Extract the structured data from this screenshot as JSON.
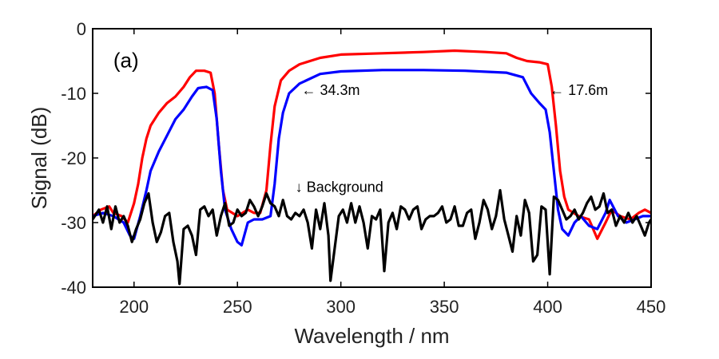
{
  "chart_data": {
    "type": "line",
    "title": "",
    "xlabel": "Wavelength / nm",
    "ylabel": "Signal (dB)",
    "xlim": [
      180,
      450
    ],
    "ylim": [
      -40,
      0
    ],
    "xticks": [
      200,
      250,
      300,
      350,
      400,
      450
    ],
    "yticks": [
      0,
      -10,
      -20,
      -30,
      -40
    ],
    "grid": false,
    "panel_label": "(a)",
    "series": [
      {
        "color": "#ff0000",
        "points": [
          [
            180,
            -29
          ],
          [
            184,
            -28
          ],
          [
            188,
            -27.5
          ],
          [
            190,
            -28.5
          ],
          [
            194,
            -29
          ],
          [
            197,
            -30
          ],
          [
            200,
            -27
          ],
          [
            202,
            -24
          ],
          [
            204,
            -20
          ],
          [
            206,
            -17
          ],
          [
            208,
            -15
          ],
          [
            212,
            -13
          ],
          [
            216,
            -11.5
          ],
          [
            220,
            -10.5
          ],
          [
            224,
            -9
          ],
          [
            227,
            -7.5
          ],
          [
            230,
            -6.5
          ],
          [
            234,
            -6.5
          ],
          [
            237,
            -6.8
          ],
          [
            239,
            -10
          ],
          [
            241,
            -18
          ],
          [
            243,
            -25
          ],
          [
            245,
            -28
          ],
          [
            250,
            -29
          ],
          [
            255,
            -28
          ],
          [
            258,
            -28.5
          ],
          [
            261,
            -28.5
          ],
          [
            264,
            -25
          ],
          [
            266,
            -18
          ],
          [
            268,
            -12
          ],
          [
            271,
            -8
          ],
          [
            275,
            -6.5
          ],
          [
            280,
            -5.5
          ],
          [
            290,
            -4.5
          ],
          [
            300,
            -4
          ],
          [
            320,
            -3.8
          ],
          [
            340,
            -3.6
          ],
          [
            355,
            -3.4
          ],
          [
            370,
            -3.6
          ],
          [
            380,
            -3.8
          ],
          [
            385,
            -4.5
          ],
          [
            390,
            -5
          ],
          [
            396,
            -5.2
          ],
          [
            400,
            -5.5
          ],
          [
            402,
            -9
          ],
          [
            404,
            -15
          ],
          [
            406,
            -22
          ],
          [
            408,
            -26
          ],
          [
            410,
            -28
          ],
          [
            415,
            -29
          ],
          [
            420,
            -29.5
          ],
          [
            424,
            -32.5
          ],
          [
            428,
            -30
          ],
          [
            431,
            -28
          ],
          [
            435,
            -29
          ],
          [
            440,
            -29.5
          ],
          [
            444,
            -28.5
          ],
          [
            447,
            -28
          ],
          [
            450,
            -28.5
          ]
        ]
      },
      {
        "color": "#0000ff",
        "points": [
          [
            180,
            -29
          ],
          [
            185,
            -28.5
          ],
          [
            190,
            -29
          ],
          [
            195,
            -30
          ],
          [
            198,
            -32
          ],
          [
            200,
            -32.5
          ],
          [
            203,
            -29
          ],
          [
            206,
            -25
          ],
          [
            208,
            -22
          ],
          [
            212,
            -19
          ],
          [
            216,
            -16.5
          ],
          [
            220,
            -14
          ],
          [
            224,
            -12.5
          ],
          [
            228,
            -10.5
          ],
          [
            231,
            -9.2
          ],
          [
            235,
            -9
          ],
          [
            238,
            -9.5
          ],
          [
            240,
            -14
          ],
          [
            242,
            -22
          ],
          [
            244,
            -28
          ],
          [
            247,
            -31
          ],
          [
            250,
            -33
          ],
          [
            252,
            -33.5
          ],
          [
            255,
            -30
          ],
          [
            258,
            -29.5
          ],
          [
            262,
            -29.5
          ],
          [
            266,
            -29
          ],
          [
            268,
            -24
          ],
          [
            270,
            -17
          ],
          [
            272,
            -13
          ],
          [
            275,
            -10
          ],
          [
            280,
            -8.5
          ],
          [
            290,
            -7
          ],
          [
            300,
            -6.6
          ],
          [
            320,
            -6.4
          ],
          [
            340,
            -6.4
          ],
          [
            360,
            -6.5
          ],
          [
            380,
            -6.8
          ],
          [
            388,
            -7.5
          ],
          [
            392,
            -10
          ],
          [
            396,
            -11.5
          ],
          [
            399,
            -12.5
          ],
          [
            401,
            -16
          ],
          [
            403,
            -22
          ],
          [
            405,
            -28
          ],
          [
            407,
            -31
          ],
          [
            410,
            -32
          ],
          [
            413,
            -30
          ],
          [
            416,
            -29
          ],
          [
            420,
            -30.5
          ],
          [
            424,
            -31
          ],
          [
            428,
            -28.5
          ],
          [
            430,
            -26.5
          ],
          [
            434,
            -29
          ],
          [
            438,
            -30
          ],
          [
            442,
            -29.5
          ],
          [
            446,
            -29
          ],
          [
            450,
            -29
          ]
        ]
      },
      {
        "name": "Background",
        "color": "#000000",
        "points": [
          [
            180,
            -29.5
          ],
          [
            183,
            -28
          ],
          [
            185,
            -30
          ],
          [
            187,
            -27.5
          ],
          [
            189,
            -31
          ],
          [
            191,
            -27.5
          ],
          [
            193,
            -30
          ],
          [
            195,
            -29
          ],
          [
            197,
            -30.5
          ],
          [
            199,
            -33
          ],
          [
            201,
            -31
          ],
          [
            203,
            -29.5
          ],
          [
            205,
            -27
          ],
          [
            207,
            -25.5
          ],
          [
            209,
            -30
          ],
          [
            211,
            -33
          ],
          [
            213,
            -31.5
          ],
          [
            215,
            -29
          ],
          [
            217,
            -28.5
          ],
          [
            219,
            -33
          ],
          [
            221,
            -36
          ],
          [
            222,
            -39.5
          ],
          [
            224,
            -31
          ],
          [
            226,
            -30.5
          ],
          [
            228,
            -32
          ],
          [
            230,
            -35
          ],
          [
            232,
            -28
          ],
          [
            234,
            -27.5
          ],
          [
            236,
            -29
          ],
          [
            238,
            -28
          ],
          [
            240,
            -32
          ],
          [
            242,
            -29
          ],
          [
            244,
            -27
          ],
          [
            246,
            -30.5
          ],
          [
            248,
            -30
          ],
          [
            250,
            -28
          ],
          [
            252,
            -29
          ],
          [
            254,
            -28.5
          ],
          [
            256,
            -26.5
          ],
          [
            258,
            -27.5
          ],
          [
            260,
            -29
          ],
          [
            262,
            -27.5
          ],
          [
            264,
            -25.5
          ],
          [
            266,
            -27
          ],
          [
            268,
            -27.5
          ],
          [
            270,
            -29
          ],
          [
            272,
            -26.5
          ],
          [
            274,
            -29
          ],
          [
            276,
            -29.5
          ],
          [
            278,
            -28.5
          ],
          [
            280,
            -29
          ],
          [
            282,
            -28
          ],
          [
            284,
            -30
          ],
          [
            286,
            -34
          ],
          [
            288,
            -28
          ],
          [
            290,
            -31
          ],
          [
            292,
            -27
          ],
          [
            294,
            -32
          ],
          [
            295,
            -39
          ],
          [
            297,
            -34
          ],
          [
            299,
            -29
          ],
          [
            301,
            -28
          ],
          [
            303,
            -30
          ],
          [
            305,
            -27
          ],
          [
            307,
            -30
          ],
          [
            309,
            -27.5
          ],
          [
            311,
            -30
          ],
          [
            313,
            -34
          ],
          [
            315,
            -29
          ],
          [
            317,
            -29.5
          ],
          [
            319,
            -28
          ],
          [
            321,
            -37.5
          ],
          [
            323,
            -30
          ],
          [
            325,
            -28.5
          ],
          [
            327,
            -31
          ],
          [
            329,
            -27.5
          ],
          [
            331,
            -28
          ],
          [
            333,
            -29.5
          ],
          [
            335,
            -28
          ],
          [
            337,
            -27.5
          ],
          [
            339,
            -31
          ],
          [
            341,
            -29.5
          ],
          [
            343,
            -29
          ],
          [
            345,
            -29
          ],
          [
            347,
            -28.5
          ],
          [
            349,
            -27.5
          ],
          [
            351,
            -30
          ],
          [
            353,
            -29.5
          ],
          [
            355,
            -27.5
          ],
          [
            357,
            -30.5
          ],
          [
            359,
            -30.5
          ],
          [
            361,
            -28.5
          ],
          [
            363,
            -28
          ],
          [
            365,
            -32.5
          ],
          [
            367,
            -30
          ],
          [
            369,
            -26.5
          ],
          [
            371,
            -28
          ],
          [
            373,
            -31
          ],
          [
            375,
            -29
          ],
          [
            377,
            -25
          ],
          [
            379,
            -29.5
          ],
          [
            381,
            -32
          ],
          [
            383,
            -34.5
          ],
          [
            385,
            -29
          ],
          [
            387,
            -32
          ],
          [
            389,
            -26.5
          ],
          [
            391,
            -28.5
          ],
          [
            393,
            -36
          ],
          [
            395,
            -35
          ],
          [
            397,
            -27.5
          ],
          [
            399,
            -28
          ],
          [
            401,
            -38
          ],
          [
            402,
            -32
          ],
          [
            403,
            -26
          ],
          [
            405,
            -26.5
          ],
          [
            407,
            -28
          ],
          [
            409,
            -29.5
          ],
          [
            411,
            -29
          ],
          [
            413,
            -28
          ],
          [
            415,
            -29.5
          ],
          [
            417,
            -28.5
          ],
          [
            419,
            -27
          ],
          [
            421,
            -26
          ],
          [
            423,
            -28
          ],
          [
            425,
            -27.5
          ],
          [
            427,
            -25.5
          ],
          [
            429,
            -28.5
          ],
          [
            431,
            -28
          ],
          [
            433,
            -30.5
          ],
          [
            435,
            -29
          ],
          [
            437,
            -30
          ],
          [
            439,
            -28.5
          ],
          [
            441,
            -30
          ],
          [
            443,
            -29
          ],
          [
            445,
            -30.5
          ],
          [
            447,
            -32
          ],
          [
            449,
            -30
          ],
          [
            450,
            -29.5
          ]
        ]
      }
    ],
    "annotations": [
      {
        "text": "← 34.3m",
        "x": 281,
        "y": -9.5
      },
      {
        "text": "← 17.6m",
        "x": 401,
        "y": -9.5
      },
      {
        "text": "↓ Background",
        "x": 278,
        "y": -24.5
      }
    ]
  }
}
